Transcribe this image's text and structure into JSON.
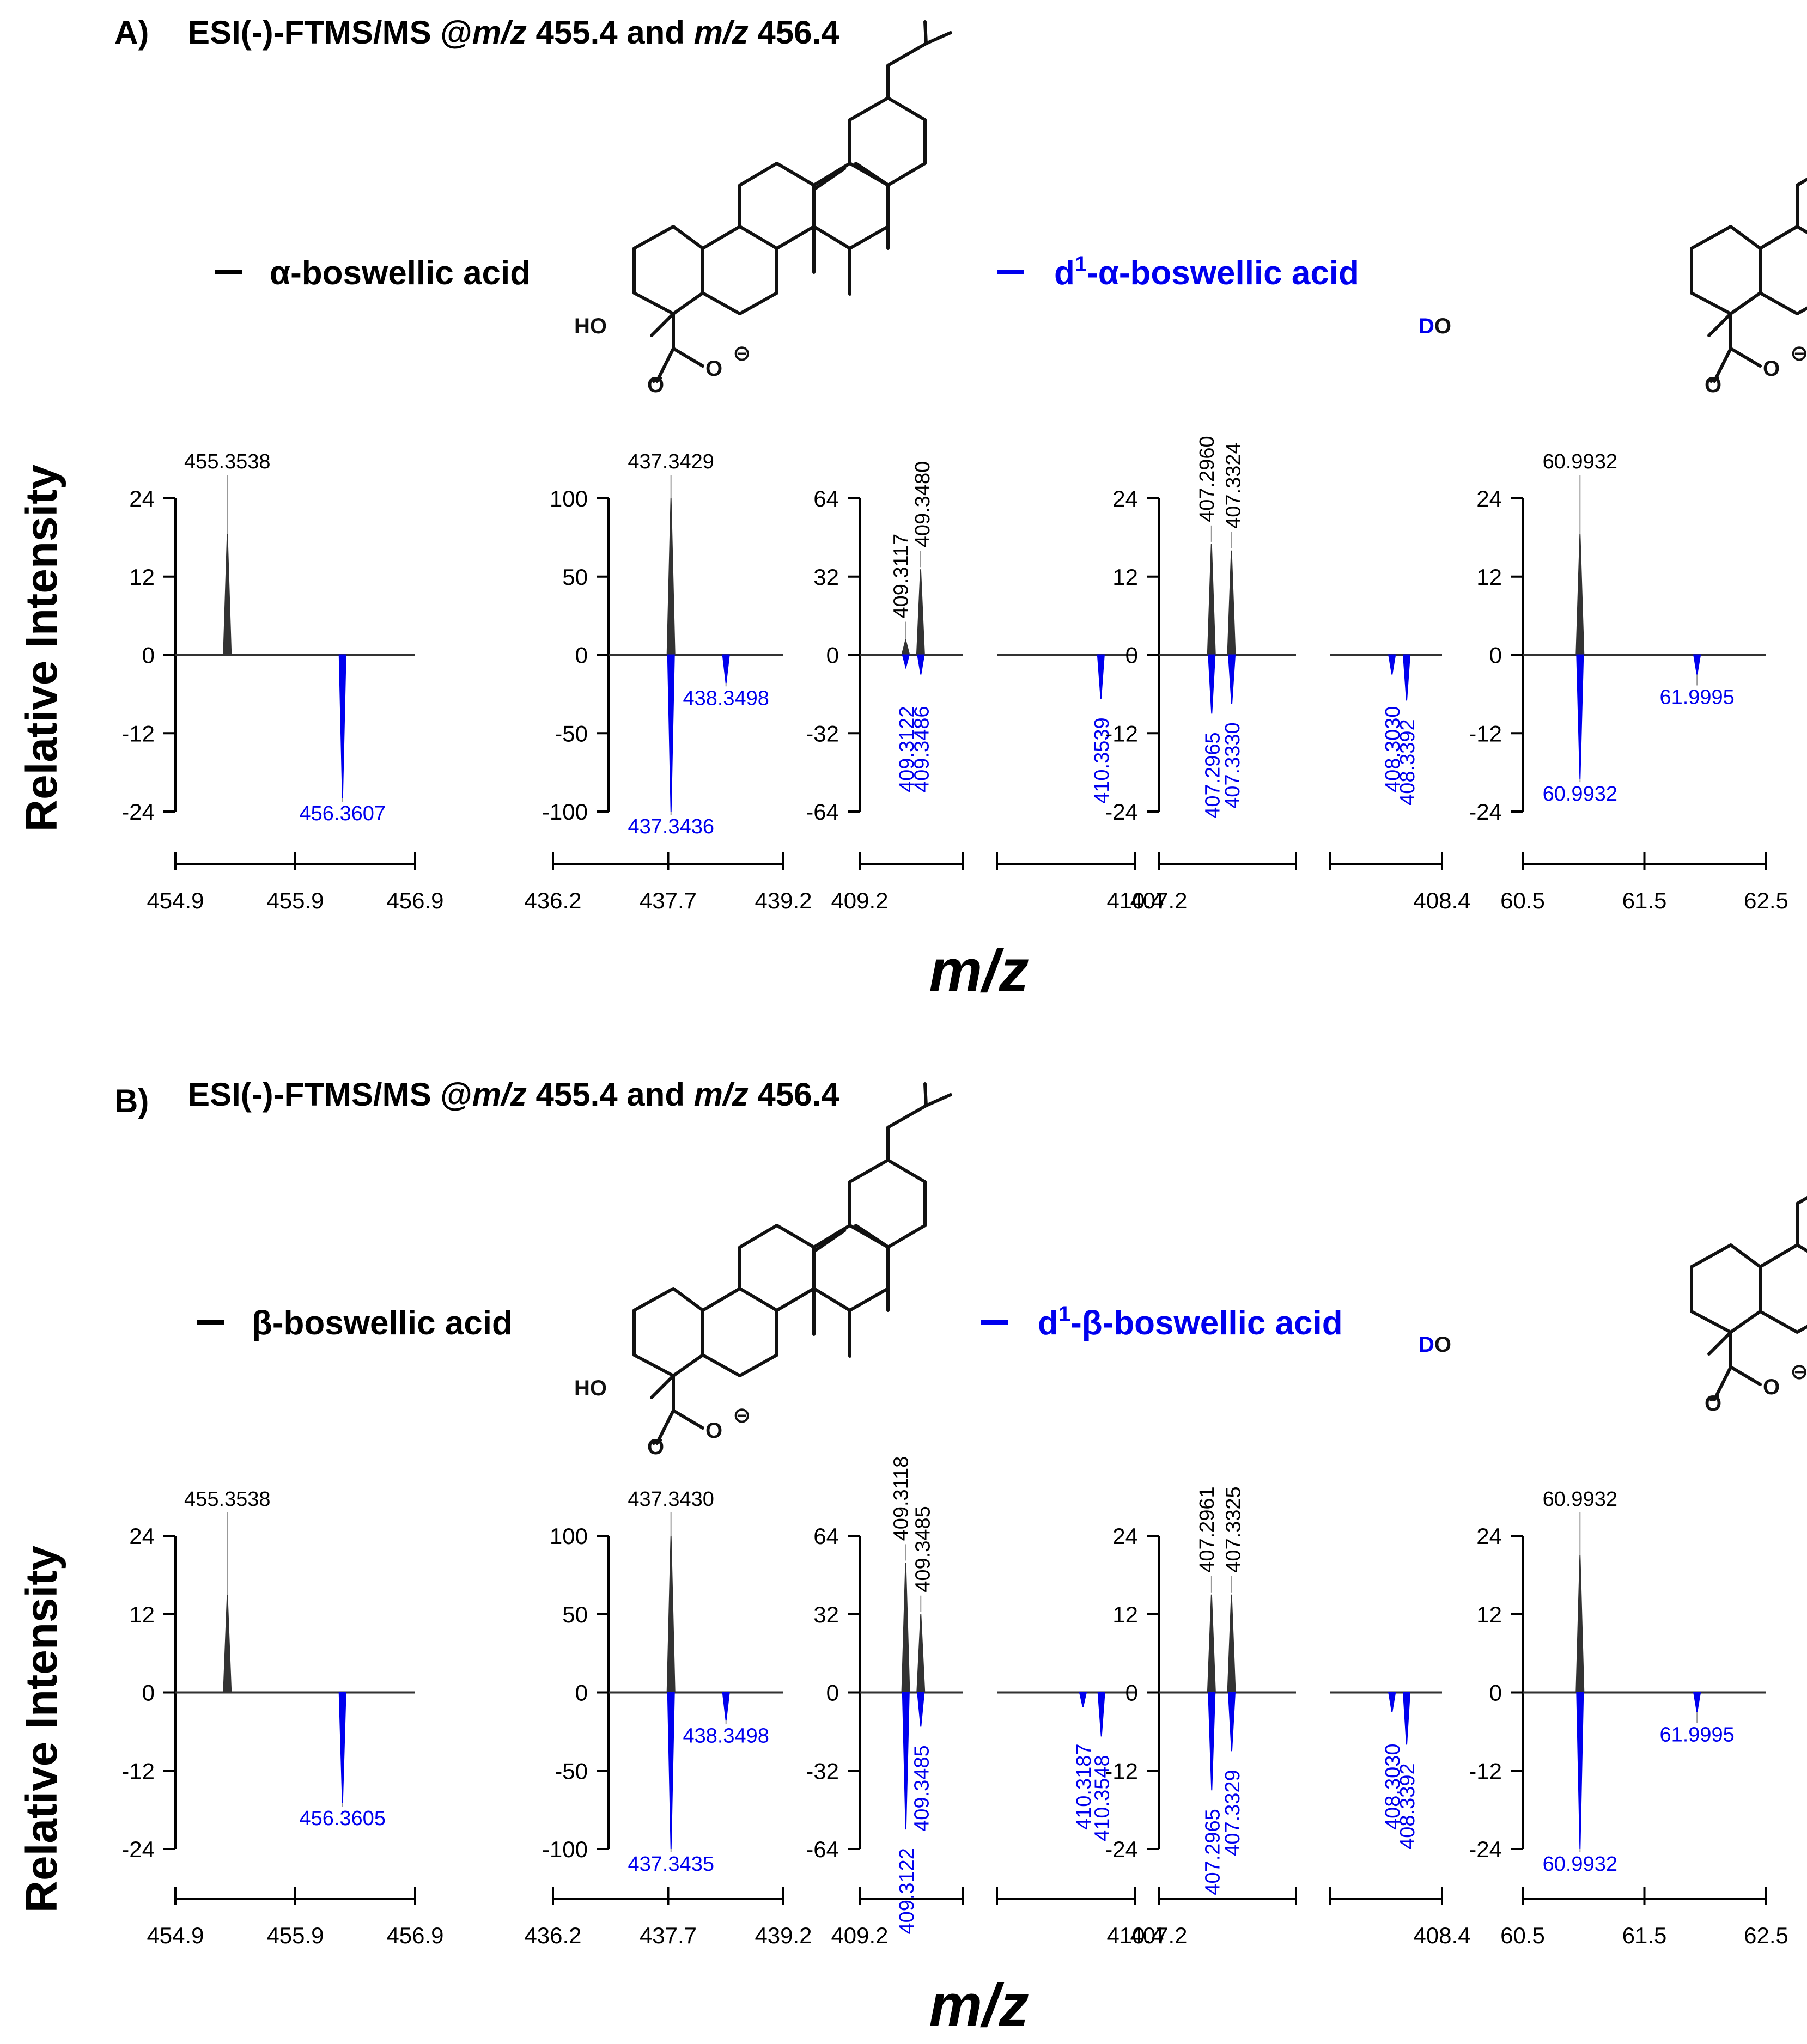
{
  "colors": {
    "native": "#333333",
    "deuterated": "#0000ee",
    "text": "#000000",
    "leader": "#999999"
  },
  "y_axis_label": "Relative Intensity",
  "x_axis_label": "m/z",
  "chart_data": [
    {
      "type": "bar",
      "panel": "A",
      "panel_label": "A)",
      "title_prefix": "ESI(-)-FTMS/MS @",
      "mz_italic": "m/z",
      "title_mid": " 455.4 and ",
      "title_end": " 456.4",
      "legend": [
        {
          "name": "α-boswellic acid",
          "color": "#000000"
        },
        {
          "name_sup": "1",
          "name_pre": "d",
          "name_post": "-α-boswellic acid",
          "color": "#0000ee"
        }
      ],
      "structure_labels": {
        "hydroxyl": "HO",
        "deutero": "D",
        "deutero_o": "O",
        "carbonyl_o": "O",
        "carboxylate_o": "O",
        "charge": "⊖"
      },
      "subplots": [
        {
          "xlim": [
            454.9,
            456.9
          ],
          "xticks": [
            "454.9",
            "455.9",
            "456.9"
          ],
          "ylim": [
            -24,
            24
          ],
          "yticks": [
            "24",
            "12",
            "0",
            "-12",
            "-24"
          ],
          "peaks_up": [
            {
              "mz": 455.3538,
              "y": 18.5,
              "label": "455.3538"
            }
          ],
          "peaks_down": [
            {
              "mz": 456.3607,
              "y": -22,
              "label": "456.3607"
            }
          ]
        },
        {
          "xlim": [
            436.2,
            439.2
          ],
          "xticks": [
            "436.2",
            "437.7",
            "439.2"
          ],
          "ylim": [
            -100,
            100
          ],
          "yticks": [
            "100",
            "50",
            "0",
            "-50",
            "-100"
          ],
          "peaks_up": [
            {
              "mz": 437.3429,
              "y": 100,
              "label": "437.3429"
            }
          ],
          "peaks_down": [
            {
              "mz": 437.3436,
              "y": -100,
              "label": "437.3436"
            },
            {
              "mz": 438.3498,
              "y": -18,
              "label": "438.3498"
            }
          ]
        },
        {
          "xlim": [
            409.2,
            410.4
          ],
          "xticks": [
            "409.2",
            "410.4"
          ],
          "ylim": [
            -64,
            64
          ],
          "yticks": [
            "64",
            "32",
            "0",
            "-32",
            "-64"
          ],
          "broken": true,
          "peaks_up": [
            {
              "mz": 409.3117,
              "y": 6,
              "label": "409.3117"
            },
            {
              "mz": 409.348,
              "y": 35,
              "label": "409.3480"
            }
          ],
          "peaks_down": [
            {
              "mz": 409.3122,
              "y": -5,
              "label": "409.3122"
            },
            {
              "mz": 409.3486,
              "y": -8,
              "label": "409.3486"
            },
            {
              "mz": 410.3539,
              "y": -18,
              "label": "410.3539"
            }
          ]
        },
        {
          "xlim": [
            407.2,
            408.4
          ],
          "xticks": [
            "407.2",
            "408.4"
          ],
          "ylim": [
            -24,
            24
          ],
          "yticks": [
            "24",
            "12",
            "0",
            "-12",
            "-24"
          ],
          "broken": true,
          "peaks_up": [
            {
              "mz": 407.296,
              "y": 17,
              "label": "407.2960"
            },
            {
              "mz": 407.3324,
              "y": 16,
              "label": "407.3324"
            }
          ],
          "peaks_down": [
            {
              "mz": 407.2965,
              "y": -9,
              "label": "407.2965"
            },
            {
              "mz": 407.333,
              "y": -7.5,
              "label": "407.3330"
            },
            {
              "mz": 408.303,
              "y": -3,
              "label": "408.3030"
            },
            {
              "mz": 408.3392,
              "y": -7,
              "label": "408.3392"
            }
          ]
        },
        {
          "xlim": [
            60.5,
            62.5
          ],
          "xticks": [
            "60.5",
            "61.5",
            "62.5"
          ],
          "ylim": [
            -24,
            24
          ],
          "yticks": [
            "24",
            "12",
            "0",
            "-12",
            "-24"
          ],
          "peaks_up": [
            {
              "mz": 60.9932,
              "y": 18.5,
              "label": "60.9932"
            }
          ],
          "peaks_down": [
            {
              "mz": 60.9932,
              "y": -19,
              "label": "60.9932"
            },
            {
              "mz": 61.9995,
              "y": -3,
              "label": "61.9995"
            }
          ]
        }
      ]
    },
    {
      "type": "bar",
      "panel": "B",
      "panel_label": "B)",
      "title_prefix": "ESI(-)-FTMS/MS @",
      "mz_italic": "m/z",
      "title_mid": " 455.4 and ",
      "title_end": " 456.4",
      "legend": [
        {
          "name": "β-boswellic acid",
          "color": "#000000"
        },
        {
          "name_sup": "1",
          "name_pre": "d",
          "name_post": "-β-boswellic acid",
          "color": "#0000ee"
        }
      ],
      "structure_labels": {
        "hydroxyl": "HO",
        "deutero": "D",
        "deutero_o": "O",
        "carbonyl_o": "O",
        "carboxylate_o": "O",
        "charge": "⊖"
      },
      "subplots": [
        {
          "xlim": [
            454.9,
            456.9
          ],
          "xticks": [
            "454.9",
            "455.9",
            "456.9"
          ],
          "ylim": [
            -24,
            24
          ],
          "yticks": [
            "24",
            "12",
            "0",
            "-12",
            "-24"
          ],
          "peaks_up": [
            {
              "mz": 455.3538,
              "y": 15,
              "label": "455.3538"
            }
          ],
          "peaks_down": [
            {
              "mz": 456.3605,
              "y": -17,
              "label": "456.3605"
            }
          ]
        },
        {
          "xlim": [
            436.2,
            439.2
          ],
          "xticks": [
            "436.2",
            "437.7",
            "439.2"
          ],
          "ylim": [
            -100,
            100
          ],
          "yticks": [
            "100",
            "50",
            "0",
            "-50",
            "-100"
          ],
          "peaks_up": [
            {
              "mz": 437.343,
              "y": 100,
              "label": "437.3430"
            }
          ],
          "peaks_down": [
            {
              "mz": 437.3435,
              "y": -100,
              "label": "437.3435"
            },
            {
              "mz": 438.3498,
              "y": -18,
              "label": "438.3498"
            }
          ]
        },
        {
          "xlim": [
            409.2,
            410.4
          ],
          "xticks": [
            "409.2",
            "410.4"
          ],
          "ylim": [
            -64,
            64
          ],
          "yticks": [
            "64",
            "32",
            "0",
            "-32",
            "-64"
          ],
          "broken": true,
          "peaks_up": [
            {
              "mz": 409.3118,
              "y": 53,
              "label": "409.3118"
            },
            {
              "mz": 409.3485,
              "y": 32,
              "label": "409.3485"
            }
          ],
          "peaks_down": [
            {
              "mz": 409.3122,
              "y": -56,
              "label": "409.3122"
            },
            {
              "mz": 409.3485,
              "y": -14,
              "label": "409.3485"
            },
            {
              "mz": 410.3187,
              "y": -6,
              "label": "410.3187"
            },
            {
              "mz": 410.3548,
              "y": -18,
              "label": "410.3548"
            }
          ]
        },
        {
          "xlim": [
            407.2,
            408.4
          ],
          "xticks": [
            "407.2",
            "408.4"
          ],
          "ylim": [
            -24,
            24
          ],
          "yticks": [
            "24",
            "12",
            "0",
            "-12",
            "-24"
          ],
          "broken": true,
          "peaks_up": [
            {
              "mz": 407.2961,
              "y": 15,
              "label": "407.2961"
            },
            {
              "mz": 407.3325,
              "y": 15,
              "label": "407.3325"
            }
          ],
          "peaks_down": [
            {
              "mz": 407.2965,
              "y": -15,
              "label": "407.2965"
            },
            {
              "mz": 407.3329,
              "y": -9,
              "label": "407.3329"
            },
            {
              "mz": 408.303,
              "y": -3,
              "label": "408.3030"
            },
            {
              "mz": 408.3392,
              "y": -8,
              "label": "408.3392"
            }
          ]
        },
        {
          "xlim": [
            60.5,
            62.5
          ],
          "xticks": [
            "60.5",
            "61.5",
            "62.5"
          ],
          "ylim": [
            -24,
            24
          ],
          "yticks": [
            "24",
            "12",
            "0",
            "-12",
            "-24"
          ],
          "peaks_up": [
            {
              "mz": 60.9932,
              "y": 21,
              "label": "60.9932"
            }
          ],
          "peaks_down": [
            {
              "mz": 60.9932,
              "y": -24,
              "label": "60.9932"
            },
            {
              "mz": 61.9995,
              "y": -3,
              "label": "61.9995"
            }
          ]
        }
      ]
    }
  ]
}
